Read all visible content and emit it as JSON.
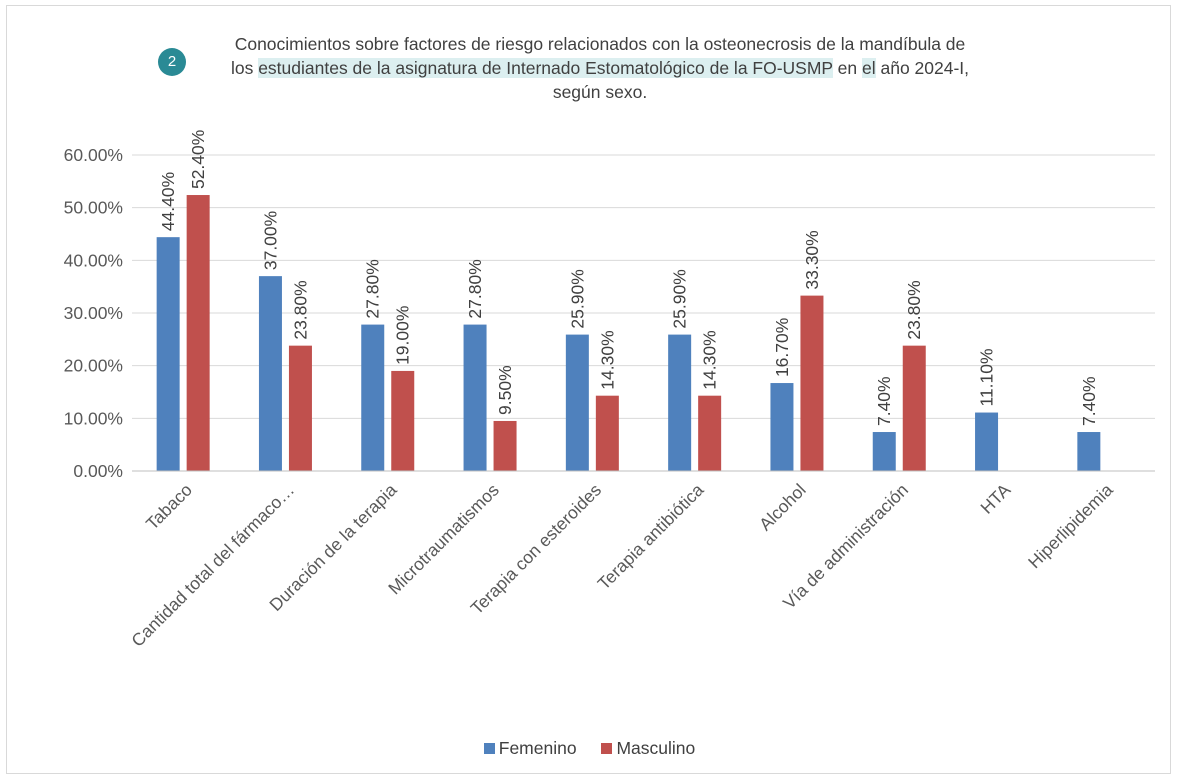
{
  "title": {
    "line1": "Conocimientos sobre factores de riesgo relacionados con la osteonecrosis de la mandíbula de",
    "line2_pre": "los ",
    "line2_hl1": "estudiantes de la asignatura de Internado Estomatológico de la FO-USMP",
    "line2_mid": " en ",
    "line2_hl2": "el",
    "line2_post": " año 2024-I,",
    "line3": "según sexo."
  },
  "badge": {
    "text": "2",
    "color": "#2a8a95"
  },
  "chart_data": {
    "type": "bar",
    "categories": [
      "Tabaco",
      "Cantidad total del fármaco…",
      "Duración de la terapia",
      "Microtraumatismos",
      "Terapia con esteroides",
      "Terapia antibiótica",
      "Alcohol",
      "Vía de administración",
      "HTA",
      "Hiperlipidemia"
    ],
    "series": [
      {
        "name": "Femenino",
        "color": "#4f81bd",
        "values": [
          44.4,
          37.0,
          27.8,
          27.8,
          25.9,
          25.9,
          16.7,
          7.4,
          11.1,
          7.4
        ],
        "labels": [
          "44.40%",
          "37.00%",
          "27.80%",
          "27.80%",
          "25.90%",
          "25.90%",
          "16.70%",
          "7.40%",
          "11.10%",
          "7.40%"
        ]
      },
      {
        "name": "Masculino",
        "color": "#c0504d",
        "values": [
          52.4,
          23.8,
          19.0,
          9.5,
          14.3,
          14.3,
          33.3,
          23.8,
          null,
          null
        ],
        "labels": [
          "52.40%",
          "23.80%",
          "19.00%",
          "9.50%",
          "14.30%",
          "14.30%",
          "33.30%",
          "23.80%",
          null,
          null
        ]
      }
    ],
    "ylim": [
      0,
      60
    ],
    "yticks": [
      "0.00%",
      "10.00%",
      "20.00%",
      "30.00%",
      "40.00%",
      "50.00%",
      "60.00%"
    ],
    "grid": true,
    "legend": "bottom"
  }
}
